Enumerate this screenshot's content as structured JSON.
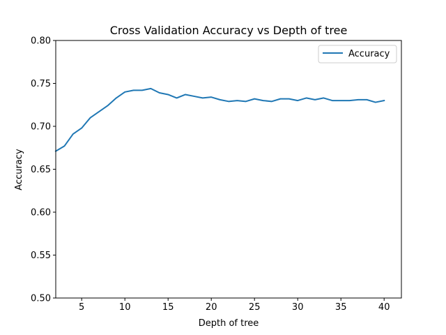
{
  "chart_data": {
    "type": "line",
    "title": "Cross Validation Accuracy vs Depth of tree",
    "xlabel": "Depth of tree",
    "ylabel": "Accuracy",
    "xlim": [
      2,
      42
    ],
    "ylim": [
      0.5,
      0.8
    ],
    "xticks": [
      5,
      10,
      15,
      20,
      25,
      30,
      35,
      40
    ],
    "xtick_labels": [
      "5",
      "10",
      "15",
      "20",
      "25",
      "30",
      "35",
      "40"
    ],
    "yticks": [
      0.5,
      0.55,
      0.6,
      0.65,
      0.7,
      0.75,
      0.8
    ],
    "ytick_labels": [
      "0.50",
      "0.55",
      "0.60",
      "0.65",
      "0.70",
      "0.75",
      "0.80"
    ],
    "grid": false,
    "legend_position": "top-right",
    "series": [
      {
        "name": "Accuracy",
        "color": "#1f77b4",
        "x": [
          2,
          3,
          4,
          5,
          6,
          7,
          8,
          9,
          10,
          11,
          12,
          13,
          14,
          15,
          16,
          17,
          18,
          19,
          20,
          21,
          22,
          23,
          24,
          25,
          26,
          27,
          28,
          29,
          30,
          31,
          32,
          33,
          34,
          35,
          36,
          37,
          38,
          39,
          40
        ],
        "y": [
          0.671,
          0.677,
          0.691,
          0.698,
          0.71,
          0.717,
          0.724,
          0.733,
          0.74,
          0.742,
          0.742,
          0.744,
          0.739,
          0.737,
          0.733,
          0.737,
          0.735,
          0.733,
          0.734,
          0.731,
          0.729,
          0.73,
          0.729,
          0.732,
          0.73,
          0.729,
          0.732,
          0.732,
          0.73,
          0.733,
          0.731,
          0.733,
          0.73,
          0.73,
          0.73,
          0.731,
          0.731,
          0.728,
          0.73
        ]
      }
    ]
  }
}
